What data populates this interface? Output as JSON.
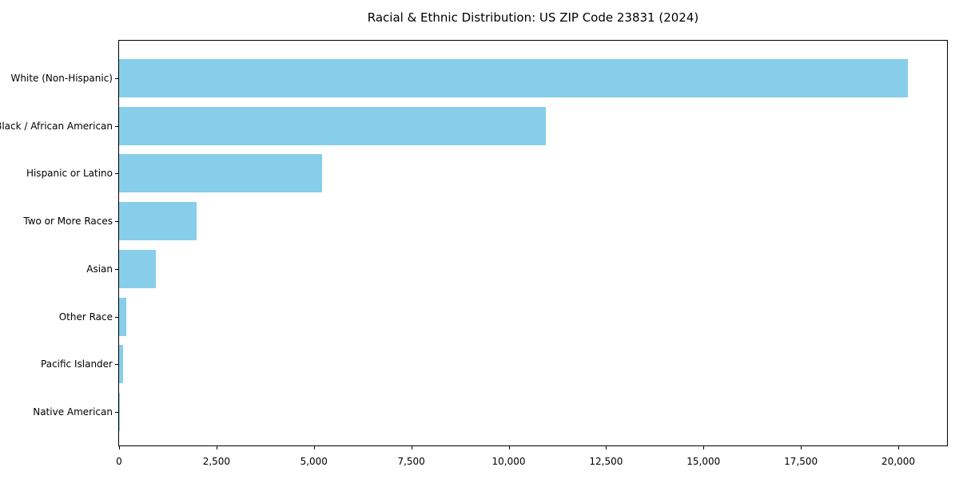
{
  "title": "Racial & Ethnic Distribution: US ZIP Code 23831 (2024)",
  "chart_data": {
    "type": "bar",
    "orientation": "horizontal",
    "title": "Racial & Ethnic Distribution: US ZIP Code 23831 (2024)",
    "categories": [
      "White (Non-Hispanic)",
      "Black / African American",
      "Hispanic or Latino",
      "Two or More Races",
      "Asian",
      "Other Race",
      "Pacific Islander",
      "Native American"
    ],
    "values": [
      20240,
      10950,
      5220,
      1985,
      940,
      190,
      110,
      15
    ],
    "xlabel": "",
    "ylabel": "",
    "xlim": [
      0,
      21250
    ],
    "x_ticks": [
      0,
      2500,
      5000,
      7500,
      10000,
      12500,
      15000,
      17500,
      20000
    ],
    "x_tick_labels": [
      "0",
      "2,500",
      "5,000",
      "7,500",
      "10,000",
      "12,500",
      "15,000",
      "17,500",
      "20,000"
    ],
    "bar_color": "#87CEEB",
    "axis_color": "#000000",
    "grid": false,
    "legend": null
  }
}
